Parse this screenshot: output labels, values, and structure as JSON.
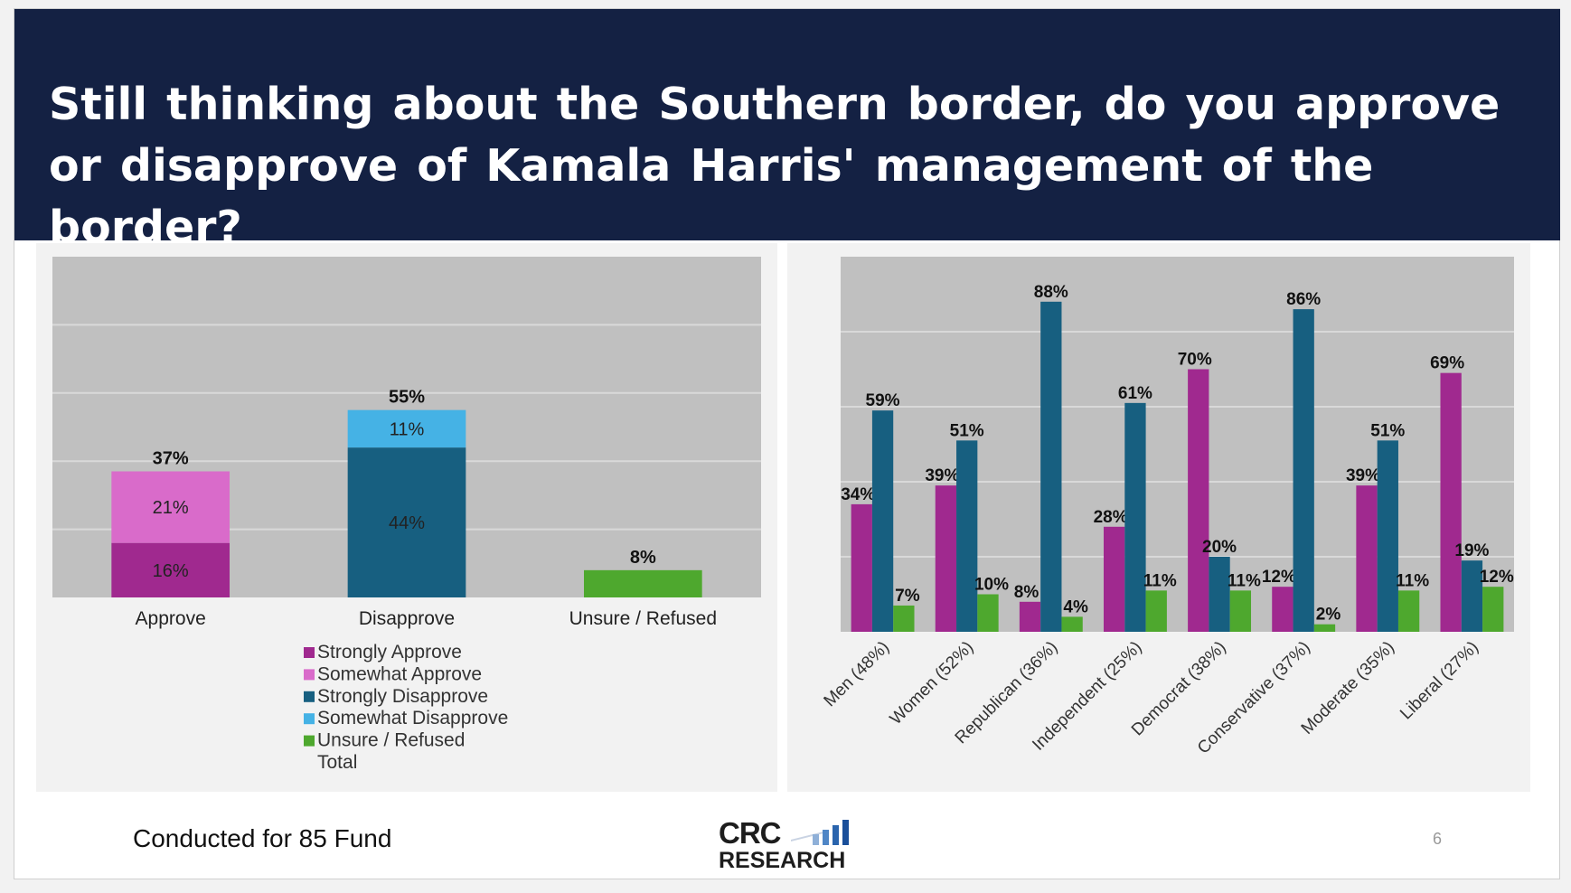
{
  "title": "Still thinking about the Southern border, do you approve or disapprove of Kamala Harris' management of the border?",
  "footer": {
    "text": "Conducted for 85 Fund",
    "page_number": "6",
    "logo": {
      "line1": "CRC",
      "line2": "RESEARCH"
    }
  },
  "colors": {
    "strongly_approve": "#a0298f",
    "somewhat_approve": "#d96bca",
    "strongly_disapprove": "#175f80",
    "somewhat_disapprove": "#45b2e5",
    "unsure": "#4ea82e",
    "plot_bg": "#c0c0c0",
    "header_bg": "#142143"
  },
  "chart_data": [
    {
      "type": "bar",
      "stacked": true,
      "title": "",
      "categories": [
        "Approve",
        "Disapprove",
        "Unsure / Refused"
      ],
      "series": [
        {
          "name": "Strongly Approve",
          "values": [
            16,
            null,
            null
          ],
          "labels": [
            "16%",
            "",
            ""
          ]
        },
        {
          "name": "Somewhat Approve",
          "values": [
            21,
            null,
            null
          ],
          "labels": [
            "21%",
            "",
            ""
          ]
        },
        {
          "name": "Strongly Disapprove",
          "values": [
            null,
            44,
            null
          ],
          "labels": [
            "",
            "44%",
            ""
          ]
        },
        {
          "name": "Somewhat Disapprove",
          "values": [
            null,
            11,
            null
          ],
          "labels": [
            "",
            "11%",
            ""
          ]
        },
        {
          "name": "Unsure / Refused",
          "values": [
            null,
            null,
            8
          ],
          "labels": [
            "",
            "",
            ""
          ]
        }
      ],
      "totals": {
        "name": "Total",
        "values": [
          37,
          55,
          8
        ],
        "labels": [
          "37%",
          "55%",
          "8%"
        ]
      },
      "legend": [
        "Strongly Approve",
        "Somewhat Approve",
        "Strongly Disapprove",
        "Somewhat Disapprove",
        "Unsure / Refused",
        "Total"
      ],
      "legend_position": "bottom",
      "ylim": [
        0,
        100
      ],
      "grid": true
    },
    {
      "type": "bar",
      "stacked": false,
      "title": "",
      "categories": [
        "Men (48%)",
        "Women (52%)",
        "Republican (36%)",
        "Independent (25%)",
        "Democrat (38%)",
        "Conservative (37%)",
        "Moderate (35%)",
        "Liberal (27%)"
      ],
      "series": [
        {
          "name": "Approve",
          "values": [
            34,
            39,
            8,
            28,
            70,
            12,
            39,
            69
          ],
          "labels": [
            "34%",
            "39%",
            "8%",
            "28%",
            "70%",
            "12%",
            "39%",
            "69%"
          ]
        },
        {
          "name": "Disapprove",
          "values": [
            59,
            51,
            88,
            61,
            20,
            86,
            51,
            19
          ],
          "labels": [
            "59%",
            "51%",
            "88%",
            "61%",
            "20%",
            "86%",
            "51%",
            "19%"
          ]
        },
        {
          "name": "Unsure / Refused",
          "values": [
            7,
            10,
            4,
            11,
            11,
            2,
            11,
            12
          ],
          "labels": [
            "7%",
            "10%",
            "4%",
            "11%",
            "11%",
            "2%",
            "11%",
            "12%"
          ]
        }
      ],
      "ylim": [
        0,
        100
      ],
      "grid": true
    }
  ]
}
